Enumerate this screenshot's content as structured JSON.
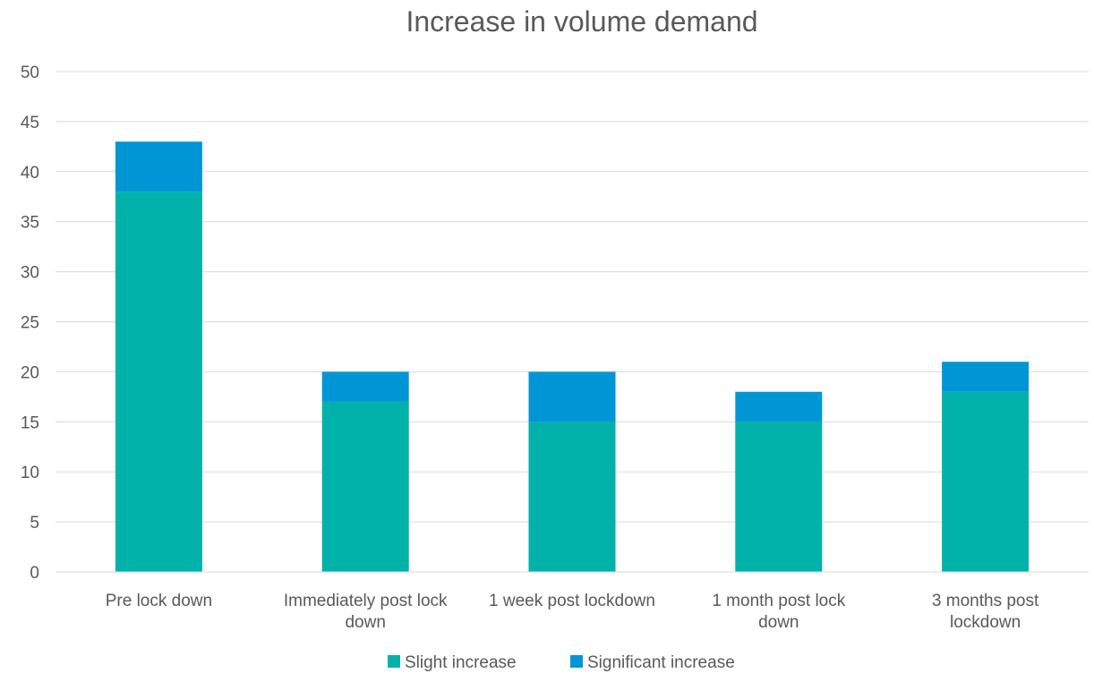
{
  "chart_data": {
    "type": "bar",
    "stacked": true,
    "title": "Increase in volume demand",
    "xlabel": "",
    "ylabel": "",
    "ylim": [
      0,
      50
    ],
    "ytick_step": 5,
    "grid": true,
    "legend_position": "bottom",
    "categories": [
      [
        "Pre lock down"
      ],
      [
        "Immediately post lock",
        "down"
      ],
      [
        "1 week post lockdown"
      ],
      [
        "1 month post lock",
        "down"
      ],
      [
        "3 months post",
        "lockdown"
      ]
    ],
    "series": [
      {
        "name": "Slight increase",
        "color": "#00B2A9",
        "values": [
          38,
          17,
          15,
          15,
          18
        ]
      },
      {
        "name": "Significant increase",
        "color": "#0096D6",
        "values": [
          5,
          3,
          5,
          3,
          3
        ]
      }
    ],
    "gridline_color": "#D9D9D9"
  }
}
